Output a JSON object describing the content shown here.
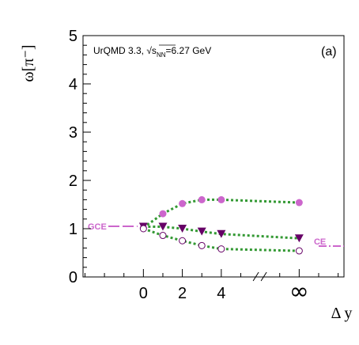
{
  "chart_data": {
    "type": "scatter",
    "ylabel": "ω[π⁻]",
    "xlabel": "Δ y",
    "annotation": "UrQMD 3.3, √s",
    "annotation_sub": "NN",
    "annotation_tail": "=6.27 GeV",
    "panel_label": "(a)",
    "ylim": [
      0,
      5
    ],
    "xlim": [
      -3.1,
      10.3
    ],
    "x_ticks": [
      0,
      2,
      4
    ],
    "y_ticks": [
      0,
      1,
      2,
      3,
      4,
      5
    ],
    "infinity_label": "∞",
    "infinity_x": 8,
    "break_x": 6,
    "grid": false,
    "series": [
      {
        "marker": "filled-circle",
        "color": "#cc66cc",
        "x": [
          0,
          1,
          2,
          3,
          4,
          8
        ],
        "y": [
          1.02,
          1.31,
          1.52,
          1.6,
          1.6,
          1.54
        ]
      },
      {
        "marker": "filled-triangle-down",
        "color": "#660066",
        "x": [
          0,
          1,
          2,
          3,
          4,
          8
        ],
        "y": [
          1.04,
          1.04,
          1.0,
          0.94,
          0.89,
          0.8
        ]
      },
      {
        "marker": "open-circle",
        "color": "#660066",
        "x": [
          0,
          1,
          2,
          3,
          4,
          8
        ],
        "y": [
          1.0,
          0.86,
          0.75,
          0.65,
          0.58,
          0.54
        ]
      }
    ],
    "references": [
      {
        "label": "GCE",
        "y": 1.05,
        "color": "#cc66cc",
        "style": "dashed",
        "x_from": -1.8,
        "x_to": -0.3
      },
      {
        "label": "CE",
        "y": 0.64,
        "color": "#cc66cc",
        "style": "dash-dot",
        "x_from": 9.0,
        "x_to": 10.3
      }
    ],
    "fit_color": "#339933"
  }
}
